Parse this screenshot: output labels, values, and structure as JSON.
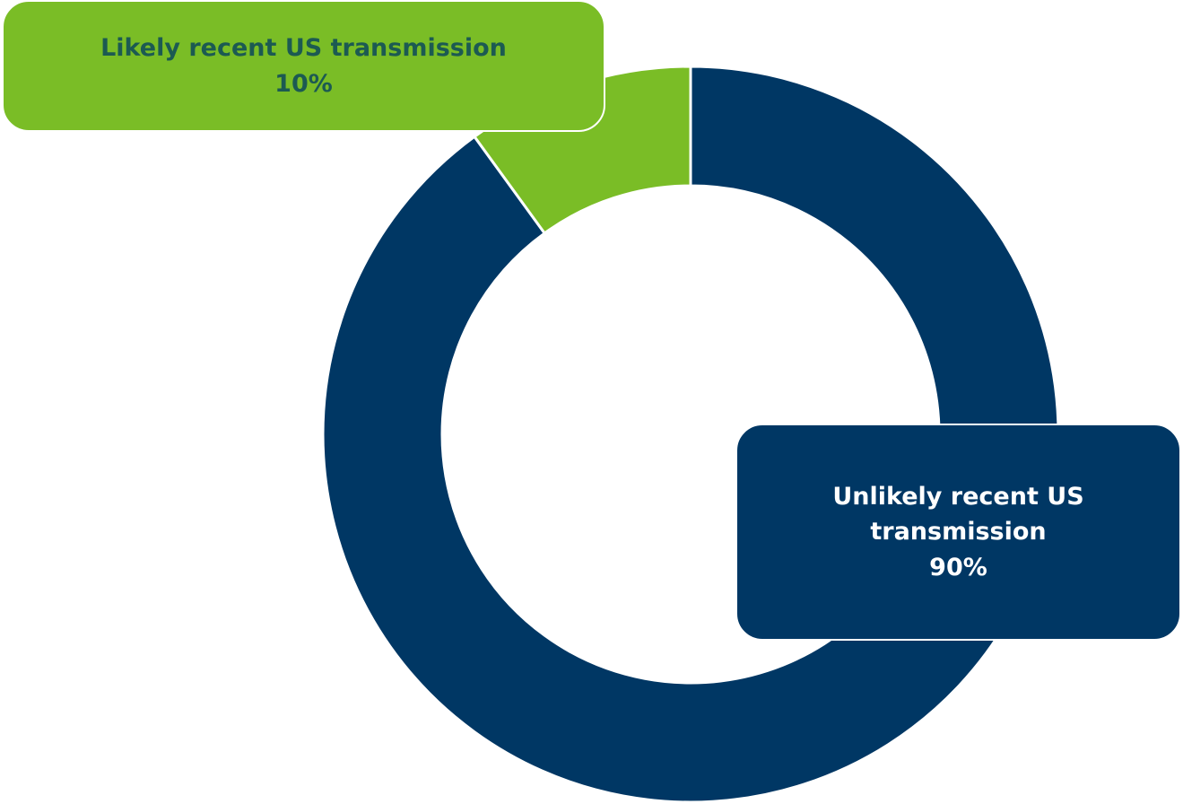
{
  "chart_data": {
    "type": "donut",
    "categories": [
      "Unlikely recent US transmission",
      "Likely recent US transmission"
    ],
    "values": [
      90,
      10
    ],
    "value_labels": [
      "90%",
      "10%"
    ],
    "colors": [
      "#003764",
      "#7abd26"
    ]
  }
}
